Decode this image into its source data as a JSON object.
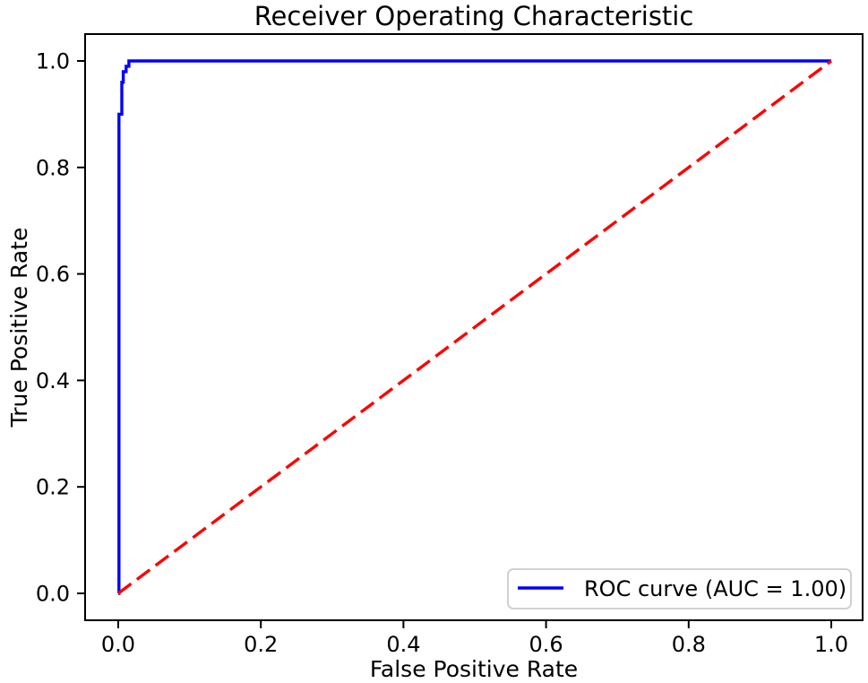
{
  "chart_data": {
    "type": "line",
    "title": "Receiver Operating Characteristic",
    "xlabel": "False Positive Rate",
    "ylabel": "True Positive Rate",
    "xlim": [
      -0.05,
      1.05
    ],
    "ylim": [
      -0.05,
      1.05
    ],
    "grid": false,
    "xticks": [
      0.0,
      0.2,
      0.4,
      0.6,
      0.8,
      1.0
    ],
    "yticks": [
      0.0,
      0.2,
      0.4,
      0.6,
      0.8,
      1.0
    ],
    "xtick_labels": [
      "0.0",
      "0.2",
      "0.4",
      "0.6",
      "0.8",
      "1.0"
    ],
    "ytick_labels": [
      "0.0",
      "0.2",
      "0.4",
      "0.6",
      "0.8",
      "1.0"
    ],
    "auc": "1.00",
    "series": [
      {
        "name": "roc-curve",
        "color": "#0000ff",
        "style": "solid",
        "points": [
          [
            0.0,
            0.0
          ],
          [
            0.001,
            0.0
          ],
          [
            0.001,
            0.9
          ],
          [
            0.005,
            0.9
          ],
          [
            0.005,
            0.96
          ],
          [
            0.007,
            0.96
          ],
          [
            0.007,
            0.98
          ],
          [
            0.011,
            0.98
          ],
          [
            0.011,
            0.99
          ],
          [
            0.015,
            0.99
          ],
          [
            0.015,
            1.0
          ],
          [
            1.0,
            1.0
          ]
        ]
      },
      {
        "name": "chance-diagonal",
        "color": "#ff0000",
        "style": "dashed",
        "points": [
          [
            0.0,
            0.0
          ],
          [
            1.0,
            1.0
          ]
        ]
      }
    ],
    "legend": {
      "position": "lower right",
      "entries": [
        {
          "label": "ROC curve (AUC = 1.00)",
          "color": "#0000ff",
          "style": "solid"
        }
      ]
    }
  },
  "colors": {
    "background": "#ffffff",
    "frame": "#000000",
    "roc_curve": "#0000ff",
    "diagonal": "#ff0000",
    "legend_border": "#cccccc",
    "text": "#000000"
  }
}
